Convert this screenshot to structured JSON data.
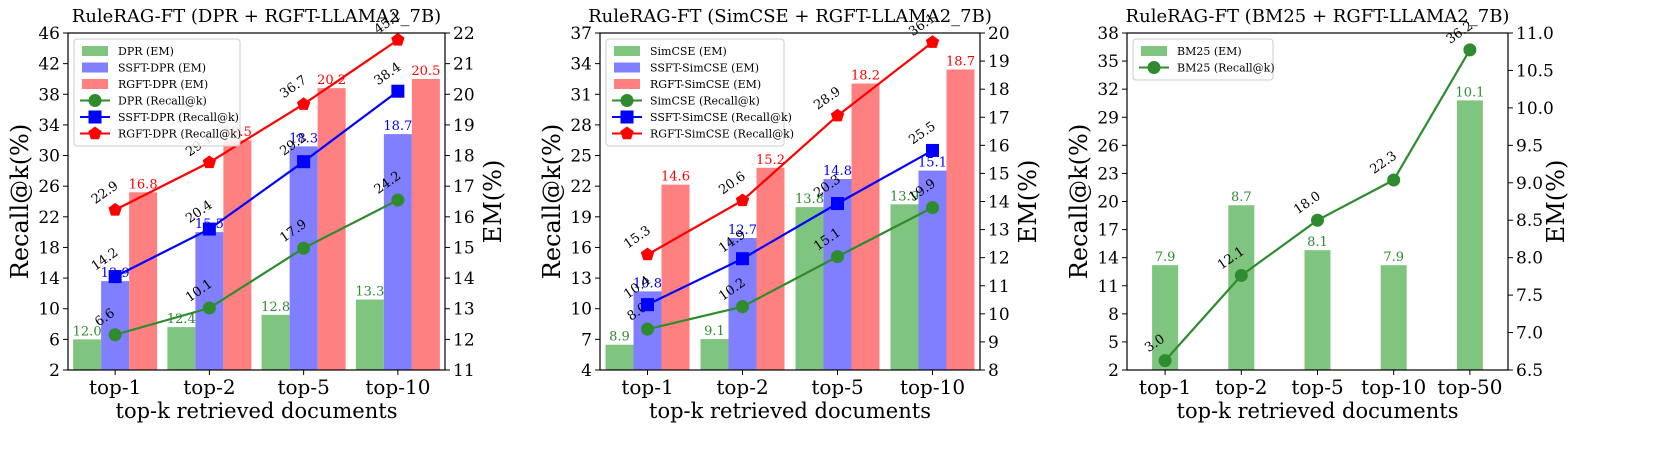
{
  "colors": {
    "base": "#2e8b2e",
    "sft": "#0000ff",
    "rgft": "#ff0000",
    "bar_base": "#7fc47f",
    "bar_sft": "#7f7fff",
    "bar_rgft": "#ff8080"
  },
  "chart_data": [
    {
      "type": "bar+line",
      "title": "RuleRAG-FT (DPR + RGFT-LLAMA2_7B)",
      "xlabel": "top-k retrieved documents",
      "ylabel_left": "Recall@k(%)",
      "ylabel_right": "EM(%)",
      "categories": [
        "top-1",
        "top-2",
        "top-5",
        "top-10"
      ],
      "recall_axis": {
        "min": 2,
        "max": 46,
        "ticks": [
          "2",
          "6",
          "10",
          "14",
          "18",
          "22",
          "26",
          "30",
          "34",
          "38",
          "42",
          "46"
        ]
      },
      "em_axis": {
        "min": 11,
        "max": 22,
        "ticks": [
          "11",
          "12",
          "13",
          "14",
          "15",
          "16",
          "17",
          "18",
          "19",
          "20",
          "21",
          "22"
        ]
      },
      "bar_series": [
        {
          "name": "DPR (EM)",
          "values": [
            12.0,
            12.4,
            12.8,
            13.3
          ],
          "labels": [
            "12.0",
            "12.4",
            "12.8",
            "13.3"
          ],
          "role": "base"
        },
        {
          "name": "SSFT-DPR (EM)",
          "values": [
            13.9,
            15.5,
            18.3,
            18.7
          ],
          "labels": [
            "13.9",
            "15.5",
            "18.3",
            "18.7"
          ],
          "role": "sft"
        },
        {
          "name": "RGFT-DPR (EM)",
          "values": [
            16.8,
            18.5,
            20.2,
            20.5
          ],
          "labels": [
            "16.8",
            "18.5",
            "20.2",
            "20.5"
          ],
          "role": "rgft"
        }
      ],
      "line_series": [
        {
          "name": "DPR (Recall@k)",
          "values": [
            6.6,
            10.1,
            17.9,
            24.2
          ],
          "labels": [
            "6.6",
            "10.1",
            "17.9",
            "24.2"
          ],
          "marker": "circle",
          "role": "base"
        },
        {
          "name": "SSFT-DPR (Recall@k)",
          "values": [
            14.2,
            20.4,
            29.2,
            38.4
          ],
          "labels": [
            "14.2",
            "20.4",
            "29.2",
            "38.4"
          ],
          "marker": "square",
          "role": "sft"
        },
        {
          "name": "RGFT-DPR (Recall@k)",
          "values": [
            22.9,
            29.1,
            36.7,
            45.1
          ],
          "labels": [
            "22.9",
            "29.1",
            "36.7",
            "45.1"
          ],
          "marker": "pentagon",
          "role": "rgft"
        }
      ],
      "legend_position": "upper-left"
    },
    {
      "type": "bar+line",
      "title": "RuleRAG-FT (SimCSE + RGFT-LLAMA2_7B)",
      "xlabel": "top-k retrieved documents",
      "ylabel_left": "Recall@k(%)",
      "ylabel_right": "EM(%)",
      "categories": [
        "top-1",
        "top-2",
        "top-5",
        "top-10"
      ],
      "recall_axis": {
        "min": 4,
        "max": 37,
        "ticks": [
          "4",
          "7",
          "10",
          "13",
          "16",
          "19",
          "22",
          "25",
          "28",
          "31",
          "34",
          "37"
        ]
      },
      "em_axis": {
        "min": 8,
        "max": 20,
        "ticks": [
          "8",
          "9",
          "10",
          "11",
          "12",
          "13",
          "14",
          "15",
          "16",
          "17",
          "18",
          "19",
          "20"
        ]
      },
      "bar_series": [
        {
          "name": "SimCSE (EM)",
          "values": [
            8.9,
            9.1,
            13.8,
            13.9
          ],
          "labels": [
            "8.9",
            "9.1",
            "13.8",
            "13.9"
          ],
          "role": "base"
        },
        {
          "name": "SSFT-SimCSE (EM)",
          "values": [
            10.8,
            12.7,
            14.8,
            15.1
          ],
          "labels": [
            "10.8",
            "12.7",
            "14.8",
            "15.1"
          ],
          "role": "sft"
        },
        {
          "name": "RGFT-SimCSE (EM)",
          "values": [
            14.6,
            15.2,
            18.2,
            18.7
          ],
          "labels": [
            "14.6",
            "15.2",
            "18.2",
            "18.7"
          ],
          "role": "rgft"
        }
      ],
      "line_series": [
        {
          "name": "SimCSE (Recall@k)",
          "values": [
            8.0,
            10.2,
            15.1,
            19.9
          ],
          "labels": [
            "8.0",
            "10.2",
            "15.1",
            "19.9"
          ],
          "marker": "circle",
          "role": "base"
        },
        {
          "name": "SSFT-SimCSE (Recall@k)",
          "values": [
            10.4,
            14.9,
            20.3,
            25.5
          ],
          "labels": [
            "10.4",
            "14.9",
            "20.3",
            "25.5"
          ],
          "marker": "square",
          "role": "sft"
        },
        {
          "name": "RGFT-SimCSE (Recall@k)",
          "values": [
            15.3,
            20.6,
            28.9,
            36.1
          ],
          "labels": [
            "15.3",
            "20.6",
            "28.9",
            "36.1"
          ],
          "marker": "pentagon",
          "role": "rgft"
        }
      ],
      "legend_position": "upper-left"
    },
    {
      "type": "bar+line",
      "title": "RuleRAG-FT (BM25 + RGFT-LLAMA2_7B)",
      "xlabel": "top-k retrieved documents",
      "ylabel_left": "Recall@k(%)",
      "ylabel_right": "EM(%)",
      "categories": [
        "top-1",
        "top-2",
        "top-5",
        "top-10",
        "top-50"
      ],
      "recall_axis": {
        "min": 2,
        "max": 38,
        "ticks": [
          "2",
          "5",
          "8",
          "11",
          "14",
          "17",
          "20",
          "23",
          "26",
          "29",
          "32",
          "35",
          "38"
        ]
      },
      "em_axis": {
        "min": 6.5,
        "max": 11.0,
        "ticks": [
          "6.5",
          "7.0",
          "7.5",
          "8.0",
          "8.5",
          "9.0",
          "9.5",
          "10.0",
          "10.5",
          "11.0"
        ]
      },
      "bar_series": [
        {
          "name": "BM25 (EM)",
          "values": [
            7.9,
            8.7,
            8.1,
            7.9,
            10.1
          ],
          "labels": [
            "7.9",
            "8.7",
            "8.1",
            "7.9",
            "10.1"
          ],
          "role": "base"
        }
      ],
      "line_series": [
        {
          "name": "BM25 (Recall@k)",
          "values": [
            3.0,
            12.1,
            18.0,
            22.3,
            36.2
          ],
          "labels": [
            "3.0",
            "12.1",
            "18.0",
            "22.3",
            "36.2"
          ],
          "marker": "circle",
          "role": "base"
        }
      ],
      "legend_position": "upper-left"
    }
  ]
}
